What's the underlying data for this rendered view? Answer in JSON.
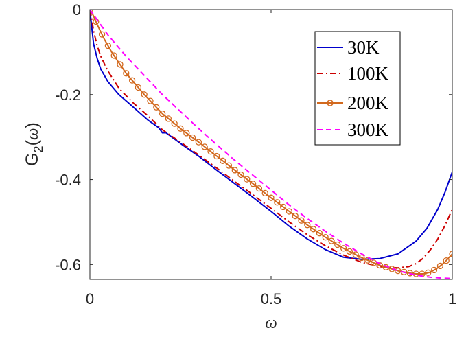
{
  "chart_data": {
    "type": "line",
    "title": "",
    "xlabel": "ω",
    "ylabel_main": "G",
    "ylabel_sub": "2",
    "ylabel_paren_open": "(",
    "ylabel_var": "ω",
    "ylabel_paren_close": ")",
    "xlim": [
      0,
      1
    ],
    "ylim": [
      -0.635,
      0
    ],
    "grid": false,
    "legend_position": "top-right",
    "x_ticks": [
      {
        "value": 0,
        "label": "0"
      },
      {
        "value": 0.5,
        "label": "0.5"
      },
      {
        "value": 1,
        "label": "1"
      }
    ],
    "y_ticks": [
      {
        "value": 0,
        "label": "0"
      },
      {
        "value": -0.2,
        "label": "-0.2"
      },
      {
        "value": -0.4,
        "label": "-0.4"
      },
      {
        "value": -0.6,
        "label": "-0.6"
      }
    ],
    "series": [
      {
        "name": "30K",
        "color": "#0000cc",
        "style": "solid",
        "marker": "none",
        "x": [
          0,
          0.005,
          0.01,
          0.02,
          0.03,
          0.05,
          0.08,
          0.12,
          0.16,
          0.19,
          0.2,
          0.21,
          0.25,
          0.3,
          0.35,
          0.4,
          0.45,
          0.5,
          0.55,
          0.6,
          0.65,
          0.7,
          0.75,
          0.8,
          0.85,
          0.9,
          0.93,
          0.96,
          0.98,
          1.0
        ],
        "values": [
          0,
          -0.04,
          -0.08,
          -0.115,
          -0.14,
          -0.17,
          -0.2,
          -0.23,
          -0.26,
          -0.278,
          -0.29,
          -0.29,
          -0.315,
          -0.345,
          -0.378,
          -0.41,
          -0.442,
          -0.475,
          -0.51,
          -0.54,
          -0.565,
          -0.583,
          -0.588,
          -0.586,
          -0.575,
          -0.545,
          -0.515,
          -0.47,
          -0.43,
          -0.382
        ]
      },
      {
        "name": "100K",
        "color": "#cc0000",
        "style": "dashdot",
        "marker": "none",
        "x": [
          0,
          0.005,
          0.01,
          0.02,
          0.03,
          0.05,
          0.08,
          0.12,
          0.16,
          0.2,
          0.25,
          0.3,
          0.35,
          0.4,
          0.45,
          0.5,
          0.55,
          0.6,
          0.65,
          0.7,
          0.75,
          0.8,
          0.85,
          0.88,
          0.9,
          0.92,
          0.94,
          0.96,
          0.98,
          1.0
        ],
        "values": [
          0,
          -0.02,
          -0.05,
          -0.085,
          -0.11,
          -0.145,
          -0.185,
          -0.22,
          -0.25,
          -0.283,
          -0.312,
          -0.342,
          -0.373,
          -0.405,
          -0.436,
          -0.468,
          -0.5,
          -0.53,
          -0.556,
          -0.578,
          -0.595,
          -0.605,
          -0.608,
          -0.605,
          -0.598,
          -0.585,
          -0.565,
          -0.54,
          -0.508,
          -0.47
        ]
      },
      {
        "name": "200K",
        "color": "#d2691e",
        "style": "solid",
        "marker": "circle",
        "x": [
          0,
          0.01,
          0.02,
          0.04,
          0.06,
          0.08,
          0.1,
          0.15,
          0.2,
          0.25,
          0.3,
          0.35,
          0.4,
          0.45,
          0.5,
          0.55,
          0.6,
          0.65,
          0.7,
          0.75,
          0.8,
          0.85,
          0.88,
          0.9,
          0.92,
          0.94,
          0.96,
          0.98,
          1.0
        ],
        "values": [
          0,
          -0.015,
          -0.035,
          -0.07,
          -0.1,
          -0.125,
          -0.15,
          -0.2,
          -0.245,
          -0.28,
          -0.312,
          -0.345,
          -0.378,
          -0.41,
          -0.443,
          -0.475,
          -0.507,
          -0.536,
          -0.562,
          -0.584,
          -0.602,
          -0.615,
          -0.62,
          -0.622,
          -0.622,
          -0.618,
          -0.608,
          -0.594,
          -0.575
        ]
      },
      {
        "name": "300K",
        "color": "#ff00ff",
        "style": "dashed",
        "marker": "none",
        "x": [
          0,
          0.05,
          0.1,
          0.15,
          0.2,
          0.25,
          0.3,
          0.35,
          0.4,
          0.45,
          0.5,
          0.55,
          0.6,
          0.65,
          0.7,
          0.75,
          0.8,
          0.85,
          0.9,
          0.94,
          0.97,
          1.0
        ],
        "values": [
          0,
          -0.06,
          -0.11,
          -0.155,
          -0.2,
          -0.24,
          -0.28,
          -0.318,
          -0.355,
          -0.39,
          -0.425,
          -0.46,
          -0.492,
          -0.522,
          -0.55,
          -0.575,
          -0.598,
          -0.615,
          -0.625,
          -0.63,
          -0.632,
          -0.633
        ]
      }
    ]
  }
}
